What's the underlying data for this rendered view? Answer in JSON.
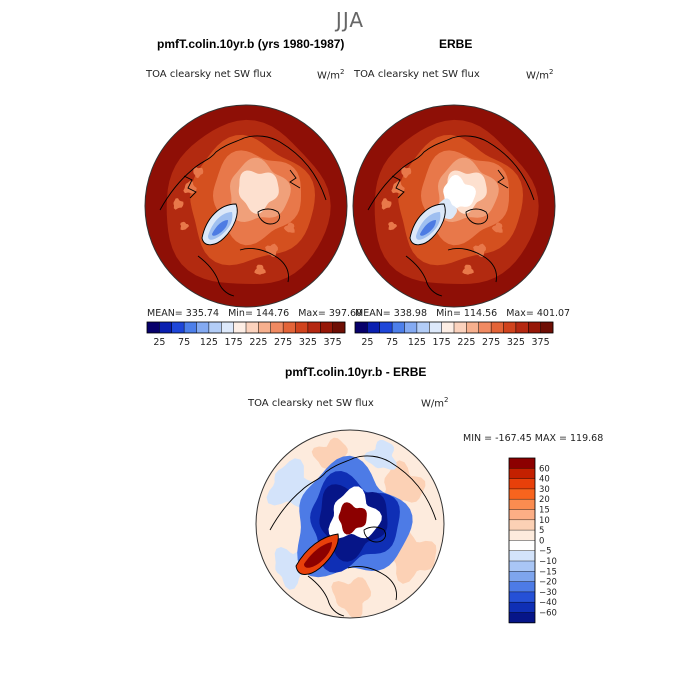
{
  "season": "JJA",
  "colors": {
    "hot_dark": "#8e0f06",
    "hot": "#b22a10",
    "orange": "#d4501f",
    "light_orange": "#f0a07a",
    "cream": "#fde8dc",
    "blue_dark": "#0b1a8f",
    "blue": "#1b49d4",
    "pale_blue": "#c9dcf6"
  },
  "panels": [
    {
      "title": "pmfT.colin.10yr.b (yrs 1980-1987)",
      "variable": "TOA clearsky net SW flux",
      "units": "W/m",
      "units_exp": "2",
      "mean_label": "MEAN= 335.74",
      "min_label": "Min= 144.76",
      "max_label": "Max= 397.60"
    },
    {
      "title": "ERBE",
      "variable": "TOA clearsky net SW flux",
      "units": "W/m",
      "units_exp": "2",
      "mean_label": "MEAN= 338.98",
      "min_label": "Min= 114.56",
      "max_label": "Max= 401.07"
    }
  ],
  "diff_panel": {
    "title": "pmfT.colin.10yr.b - ERBE",
    "variable": "TOA clearsky net SW flux",
    "units": "W/m",
    "units_exp": "2",
    "minmax_label": "MIN = -167.45 MAX = 119.68"
  },
  "chart_data": [
    {
      "type": "heatmap",
      "projection": "north-polar-stereographic",
      "title": "pmfT.colin.10yr.b (yrs 1980-1987)",
      "variable": "TOA clearsky net SW flux",
      "units": "W/m2",
      "stats": {
        "mean": 335.74,
        "min": 144.76,
        "max": 397.6
      },
      "colorbar": {
        "ticks": [
          "25",
          "75",
          "125",
          "175",
          "225",
          "275",
          "325",
          "375"
        ],
        "colors": [
          "#07006b",
          "#0a1fb0",
          "#1e46d9",
          "#4d7fea",
          "#84aaf2",
          "#b3cdf7",
          "#dde9fb",
          "#fdeee5",
          "#fbd2bd",
          "#f7b08e",
          "#f08a62",
          "#e36438",
          "#d0431d",
          "#b52811",
          "#961707",
          "#6e0e04"
        ]
      },
      "contour_colors": [
        "#8e0f06",
        "#b22a10",
        "#d4501f",
        "#e8784a",
        "#f0a07a",
        "#fde0cf",
        "#f7eee8",
        "#dce8f8",
        "#9fbff0",
        "#4d7be3"
      ]
    },
    {
      "type": "heatmap",
      "projection": "north-polar-stereographic",
      "title": "ERBE",
      "variable": "TOA clearsky net SW flux",
      "units": "W/m2",
      "stats": {
        "mean": 338.98,
        "min": 114.56,
        "max": 401.07
      },
      "colorbar": {
        "ticks": [
          "25",
          "75",
          "125",
          "175",
          "225",
          "275",
          "325",
          "375"
        ],
        "colors": [
          "#07006b",
          "#0a1fb0",
          "#1e46d9",
          "#4d7fea",
          "#84aaf2",
          "#b3cdf7",
          "#dde9fb",
          "#fdeee5",
          "#fbd2bd",
          "#f7b08e",
          "#f08a62",
          "#e36438",
          "#d0431d",
          "#b52811",
          "#961707",
          "#6e0e04"
        ]
      },
      "contour_colors": [
        "#8e0f06",
        "#b22a10",
        "#d4501f",
        "#e8784a",
        "#f0a07a",
        "#fde0cf",
        "#ffffff",
        "#dce8f8",
        "#9fbff0",
        "#4d7be3"
      ]
    },
    {
      "type": "heatmap",
      "projection": "north-polar-stereographic",
      "title": "pmfT.colin.10yr.b - ERBE",
      "variable": "TOA clearsky net SW flux",
      "units": "W/m2",
      "stats": {
        "min": -167.45,
        "max": 119.68
      },
      "colorbar": {
        "levels": [
          "60",
          "40",
          "30",
          "20",
          "15",
          "10",
          "5",
          "0",
          "−5",
          "−10",
          "−15",
          "−20",
          "−30",
          "−40",
          "−60"
        ],
        "colors": [
          "#8c0000",
          "#c42000",
          "#e8400a",
          "#f8641e",
          "#fb8c50",
          "#fcae85",
          "#fcd1b5",
          "#fdebdd",
          "#ffffff",
          "#d3e3fa",
          "#a9c6f5",
          "#7ea5ee",
          "#4d7be6",
          "#2550d6",
          "#0f2fb5",
          "#061588"
        ]
      }
    }
  ]
}
